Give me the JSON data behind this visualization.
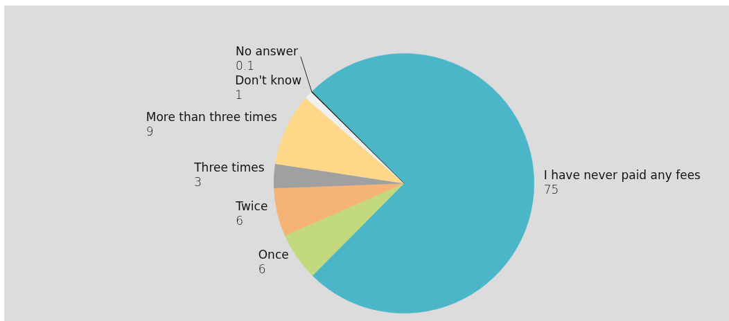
{
  "chart_data": {
    "type": "pie",
    "categories": [
      "I have never paid any fees",
      "Once",
      "Twice",
      "Three times",
      "More than three times",
      "Don't know",
      "No answer"
    ],
    "values": [
      75,
      6,
      6,
      3,
      9,
      1,
      0.1
    ],
    "colors": [
      "#4ab6c8",
      "#c2d97e",
      "#f6b378",
      "#a0a0a0",
      "#fed888",
      "#f0f0f0",
      "#1a1a1a"
    ],
    "data_labels": true
  }
}
